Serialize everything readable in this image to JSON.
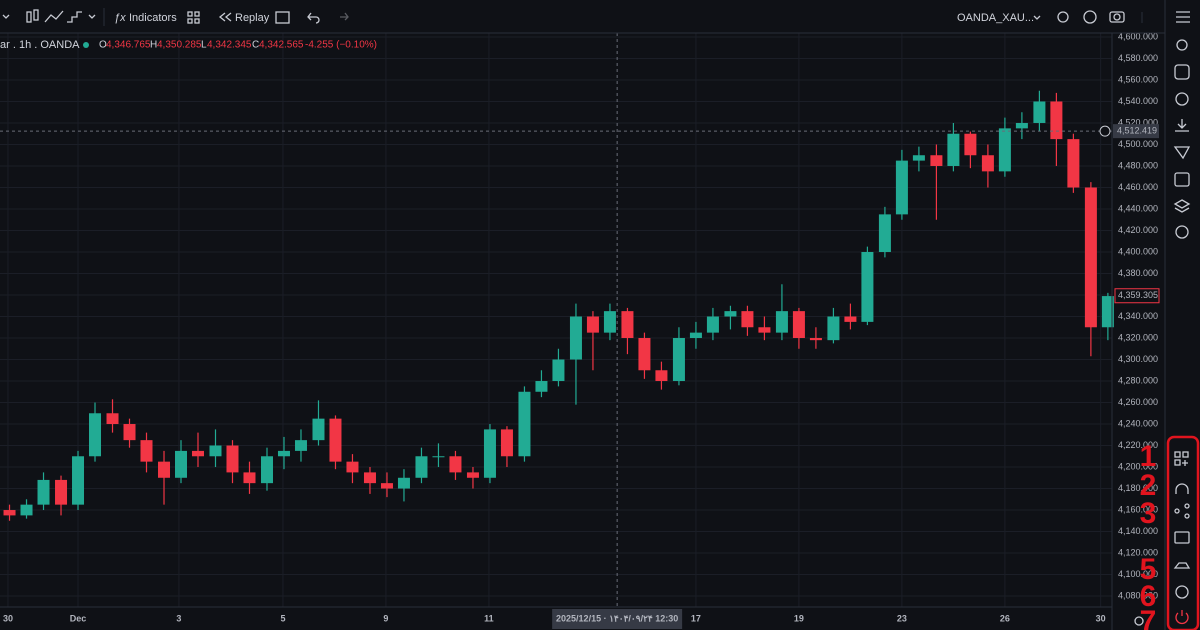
{
  "toolbar": {
    "indicators": "Indicators",
    "replay": "Replay",
    "symbol": "OANDA_XAU..."
  },
  "legend": {
    "symbol": "ar . 1h . OANDA",
    "o_key": "O",
    "o": "4,346.765",
    "h_key": "H",
    "h": "4,350.285",
    "l_key": "L",
    "l": "4,342.345",
    "c_key": "C",
    "c": "4,342.565",
    "change": "-4.255 (−0.10%)"
  },
  "annotations": [
    "1",
    "2",
    "3",
    "5",
    "6",
    "7"
  ],
  "chart_data": {
    "type": "candlestick",
    "up_color": "#22ab94",
    "down_color": "#f23645",
    "grid": true,
    "x": [
      -1.33,
      -1,
      -0.67,
      -0.33,
      0,
      0.33,
      0.67,
      1,
      1.33,
      1.67,
      2,
      2.33,
      2.67,
      3,
      3.33,
      3.67,
      4,
      4.33,
      4.67,
      5,
      5.33,
      5.67,
      6,
      6.33,
      6.67,
      7,
      7.33,
      7.67,
      8,
      8.33,
      8.67,
      9,
      9.33,
      9.67,
      10,
      10.33,
      10.67,
      11,
      11.33,
      11.67,
      12,
      12.33,
      12.67,
      13,
      13.33,
      13.67,
      14,
      14.33,
      14.67,
      15,
      15.33,
      15.67,
      16,
      16.33,
      16.67,
      17,
      17.33,
      17.67,
      18,
      18.33,
      18.67,
      19,
      19.33,
      19.67,
      20
    ],
    "open": [
      4160,
      4155,
      4165,
      4188,
      4165,
      4210,
      4250,
      4240,
      4225,
      4205,
      4190,
      4215,
      4210,
      4220,
      4195,
      4185,
      4210,
      4215,
      4225,
      4245,
      4205,
      4195,
      4185,
      4180,
      4190,
      4210,
      4210,
      4195,
      4190,
      4235,
      4210,
      4270,
      4280,
      4300,
      4340,
      4325,
      4345,
      4320,
      4290,
      4280,
      4320,
      4325,
      4340,
      4345,
      4330,
      4325,
      4345,
      4320,
      4318,
      4340,
      4335,
      4400,
      4435,
      4485,
      4490,
      4480,
      4510,
      4490,
      4475,
      4515,
      4520,
      4540,
      4505,
      4460,
      4330
    ],
    "high": [
      4165,
      4170,
      4195,
      4192,
      4215,
      4260,
      4263,
      4245,
      4232,
      4215,
      4225,
      4232,
      4235,
      4225,
      4205,
      4218,
      4228,
      4235,
      4262,
      4248,
      4212,
      4200,
      4195,
      4198,
      4218,
      4222,
      4215,
      4200,
      4240,
      4238,
      4275,
      4290,
      4310,
      4352,
      4345,
      4352,
      4348,
      4325,
      4298,
      4330,
      4335,
      4348,
      4350,
      4350,
      4340,
      4370,
      4348,
      4330,
      4348,
      4352,
      4405,
      4442,
      4495,
      4498,
      4500,
      4520,
      4512,
      4500,
      4525,
      4530,
      4550,
      4548,
      4510,
      4465,
      4362
    ],
    "low": [
      4150,
      4152,
      4160,
      4155,
      4160,
      4205,
      4232,
      4218,
      4195,
      4165,
      4185,
      4200,
      4200,
      4185,
      4175,
      4178,
      4198,
      4205,
      4220,
      4198,
      4185,
      4175,
      4172,
      4168,
      4185,
      4200,
      4188,
      4180,
      4185,
      4200,
      4205,
      4265,
      4275,
      4258,
      4290,
      4318,
      4305,
      4282,
      4272,
      4276,
      4310,
      4318,
      4328,
      4322,
      4318,
      4318,
      4310,
      4310,
      4315,
      4328,
      4332,
      4395,
      4430,
      4475,
      4430,
      4475,
      4478,
      4460,
      4470,
      4505,
      4512,
      4480,
      4455,
      4303,
      4318
    ],
    "close": [
      4155,
      4165,
      4188,
      4165,
      4210,
      4250,
      4240,
      4225,
      4205,
      4190,
      4215,
      4210,
      4220,
      4195,
      4185,
      4210,
      4215,
      4225,
      4245,
      4205,
      4195,
      4185,
      4180,
      4190,
      4210,
      4210,
      4195,
      4190,
      4235,
      4210,
      4270,
      4280,
      4300,
      4340,
      4325,
      4345,
      4320,
      4290,
      4280,
      4320,
      4325,
      4340,
      4345,
      4330,
      4325,
      4345,
      4320,
      4318,
      4340,
      4335,
      4400,
      4435,
      4485,
      4490,
      4480,
      4510,
      4490,
      4475,
      4515,
      4520,
      4540,
      4505,
      4460,
      4330,
      4359
    ],
    "xlim": [
      -1.515,
      20.08
    ],
    "ylim": [
      4069.8,
      4603.7
    ],
    "xticks": [
      {
        "value": -1.36,
        "label": "30"
      },
      {
        "value": 0,
        "label": "Dec"
      },
      {
        "value": 1.96,
        "label": "3"
      },
      {
        "value": 3.98,
        "label": "5"
      },
      {
        "value": 5.98,
        "label": "9"
      },
      {
        "value": 7.98,
        "label": "11"
      },
      {
        "value": 12,
        "label": "17"
      },
      {
        "value": 14,
        "label": "19"
      },
      {
        "value": 16,
        "label": "23"
      },
      {
        "value": 18,
        "label": "26"
      },
      {
        "value": 19.86,
        "label": "30"
      }
    ],
    "yticks": [
      {
        "value": 4080,
        "label": "4,080.000"
      },
      {
        "value": 4100,
        "label": "4,100.000"
      },
      {
        "value": 4120,
        "label": "4,120.000"
      },
      {
        "value": 4140,
        "label": "4,140.000"
      },
      {
        "value": 4160,
        "label": "4,160.000"
      },
      {
        "value": 4180,
        "label": "4,180.000"
      },
      {
        "value": 4200,
        "label": "4,200.000"
      },
      {
        "value": 4220,
        "label": "4,220.000"
      },
      {
        "value": 4240,
        "label": "4,240.000"
      },
      {
        "value": 4260,
        "label": "4,260.000"
      },
      {
        "value": 4280,
        "label": "4,280.000"
      },
      {
        "value": 4300,
        "label": "4,300.000"
      },
      {
        "value": 4320,
        "label": "4,320.000"
      },
      {
        "value": 4340,
        "label": "4,340.000"
      },
      {
        "value": 4360,
        "label": "4,360.000"
      },
      {
        "value": 4380,
        "label": "4,380.000"
      },
      {
        "value": 4400,
        "label": "4,400.000"
      },
      {
        "value": 4420,
        "label": "4,420.000"
      },
      {
        "value": 4440,
        "label": "4,440.000"
      },
      {
        "value": 4460,
        "label": "4,460.000"
      },
      {
        "value": 4480,
        "label": "4,480.000"
      },
      {
        "value": 4500,
        "label": "4,500.000"
      },
      {
        "value": 4520,
        "label": "4,520.000"
      },
      {
        "value": 4540,
        "label": "4,540.000"
      },
      {
        "value": 4560,
        "label": "4,560.000"
      },
      {
        "value": 4580,
        "label": "4,580.000"
      },
      {
        "value": 4600,
        "label": "4,600.000"
      }
    ],
    "crosshair": {
      "price": {
        "value": 4512.419,
        "label": "4,512.419"
      },
      "x": 10.47,
      "time_label": "2025/12/15 · ۱۴۰۴/۰۹/۲۴   12:30"
    },
    "last_price": {
      "value": 4359.305,
      "label": "4,359.305"
    }
  }
}
